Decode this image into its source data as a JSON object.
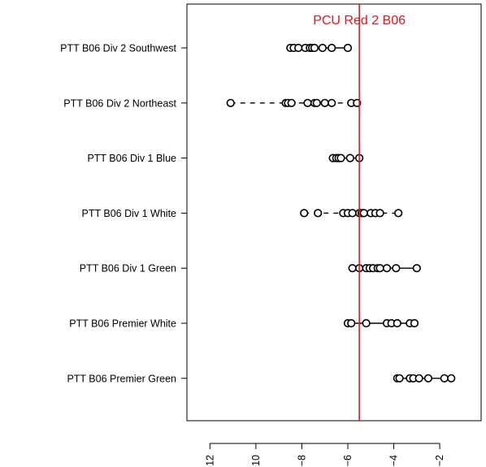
{
  "chart_data": {
    "type": "scatter",
    "title": "",
    "xlabel": "",
    "ylabel": "",
    "xlim": [
      -13,
      -0.2
    ],
    "x_ticks": [
      -12,
      -10,
      -8,
      -6,
      -4,
      -2
    ],
    "x_tick_labels": [
      "−12",
      "−10",
      "−8",
      "−6",
      "−4",
      "−2"
    ],
    "reference_line": {
      "value": -5.5,
      "label": "PCU Red 2 B06",
      "color": "#e8141b"
    },
    "series": [
      {
        "name": "PTT B06 Div 2 Southwest",
        "values": [
          -8.5,
          -8.35,
          -8.15,
          -7.85,
          -7.65,
          -7.55,
          -7.45,
          -7.1,
          -6.7,
          -6.0
        ],
        "dashed": false
      },
      {
        "name": "PTT B06 Div 2 Northeast",
        "values": [
          -11.1,
          -8.7,
          -8.6,
          -8.45,
          -7.75,
          -7.45,
          -7.35,
          -7.0,
          -6.7,
          -5.85,
          -5.6
        ],
        "dashed": true
      },
      {
        "name": "PTT B06 Div 1 Blue",
        "values": [
          -6.65,
          -6.5,
          -6.4,
          -6.3,
          -5.9,
          -5.5
        ],
        "dashed": false
      },
      {
        "name": "PTT B06 Div 1 White",
        "values": [
          -7.9,
          -7.3,
          -6.2,
          -6.0,
          -5.8,
          -5.5,
          -5.4,
          -5.3,
          -5.0,
          -4.8,
          -4.6,
          -3.8
        ],
        "dashed": true
      },
      {
        "name": "PTT B06 Div 1 Green",
        "values": [
          -5.8,
          -5.5,
          -5.2,
          -5.05,
          -4.9,
          -4.7,
          -4.6,
          -4.3,
          -3.9,
          -3.0
        ],
        "dashed": false
      },
      {
        "name": "PTT B06 Premier White",
        "values": [
          -6.0,
          -5.85,
          -5.2,
          -4.3,
          -4.1,
          -3.85,
          -3.3,
          -3.1
        ],
        "dashed": false
      },
      {
        "name": "PTT B06 Premier Green",
        "values": [
          -3.85,
          -3.75,
          -3.3,
          -3.15,
          -2.9,
          -2.5,
          -1.8,
          -1.5
        ],
        "dashed": false
      }
    ],
    "colors": {
      "points": "#000000",
      "axis": "#000000",
      "reference": "#e8141b"
    }
  }
}
